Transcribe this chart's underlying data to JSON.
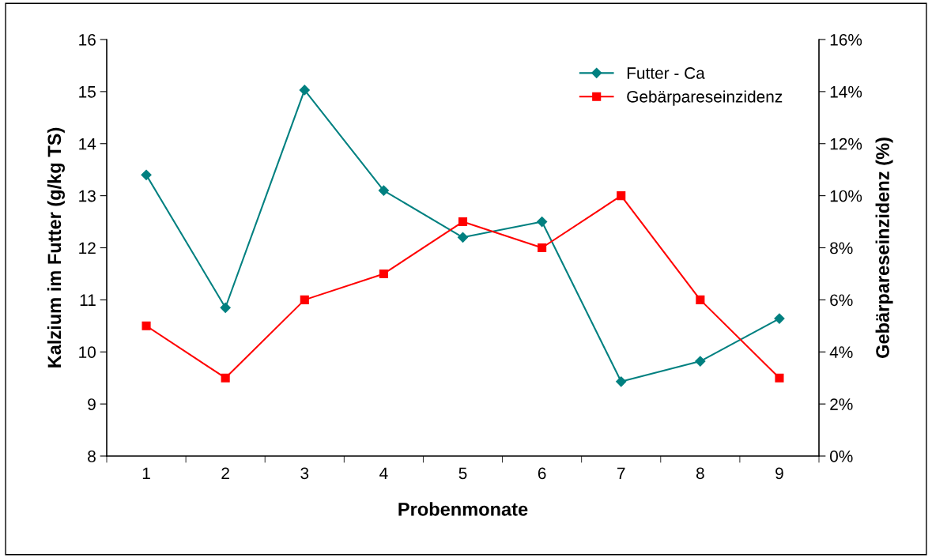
{
  "chart_data": {
    "type": "line",
    "xlabel": "Probenmonate",
    "ylabel": "Kalzium im Futter (g/kg TS)",
    "y2label": "Gebärpareseinzidenz (%)",
    "categories": [
      "1",
      "2",
      "3",
      "4",
      "5",
      "6",
      "7",
      "8",
      "9"
    ],
    "series": [
      {
        "name": "Futter - Ca",
        "color": "#008080",
        "marker": "diamond",
        "values": [
          13.4,
          10.85,
          15.03,
          13.1,
          12.2,
          12.5,
          9.43,
          9.82,
          10.64
        ]
      },
      {
        "name": "Gebärpareseinzidenz",
        "color": "#ff0000",
        "marker": "square",
        "axis": "y2",
        "values": [
          5,
          3,
          6,
          7,
          9,
          8,
          10,
          6,
          3
        ]
      }
    ],
    "ylim": [
      8,
      16
    ],
    "yticks": [
      8,
      9,
      10,
      11,
      12,
      13,
      14,
      15,
      16
    ],
    "y2lim": [
      0,
      16
    ],
    "y2ticks": [
      {
        "value": 0,
        "label": "0%"
      },
      {
        "value": 2,
        "label": "2%"
      },
      {
        "value": 4,
        "label": "4%"
      },
      {
        "value": 6,
        "label": "6%"
      },
      {
        "value": 8,
        "label": "8%"
      },
      {
        "value": 10,
        "label": "10%"
      },
      {
        "value": 12,
        "label": "12%"
      },
      {
        "value": 14,
        "label": "14%"
      },
      {
        "value": 16,
        "label": "16%"
      }
    ],
    "grid": false,
    "legend": "top right"
  }
}
